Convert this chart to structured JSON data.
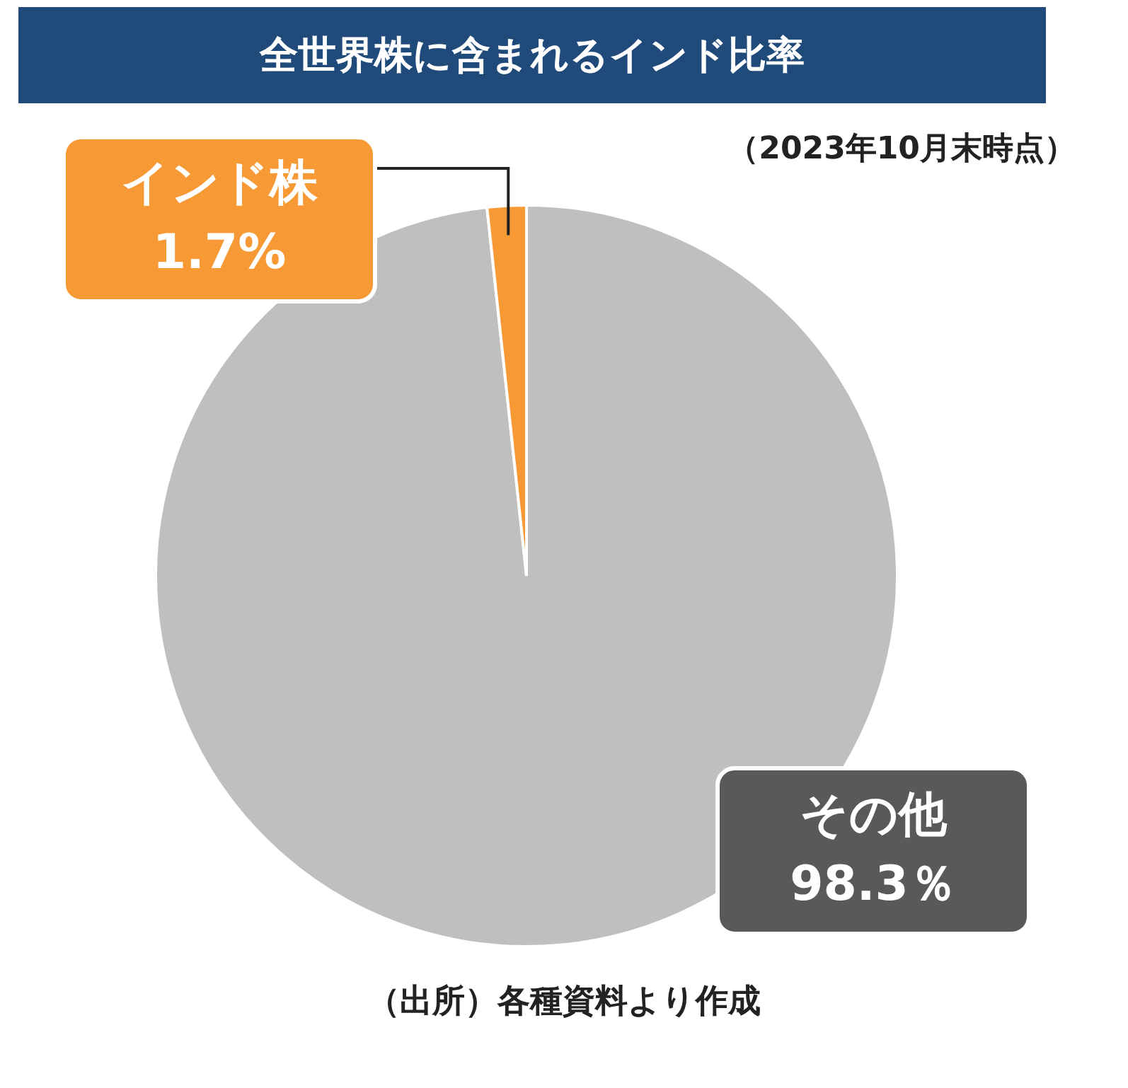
{
  "chart_data": {
    "type": "pie",
    "title": "全世界株に含まれるインド比率",
    "subtitle": "（2023年10月末時点）",
    "categories": [
      "その他",
      "インド株"
    ],
    "values": [
      98.3,
      1.7
    ],
    "colors": [
      "#bfbfbf",
      "#f79a36"
    ],
    "value_labels": [
      "98.3％",
      "1.7%"
    ],
    "legend": false,
    "annotations": [
      "（出所）各種資料より作成"
    ]
  }
}
